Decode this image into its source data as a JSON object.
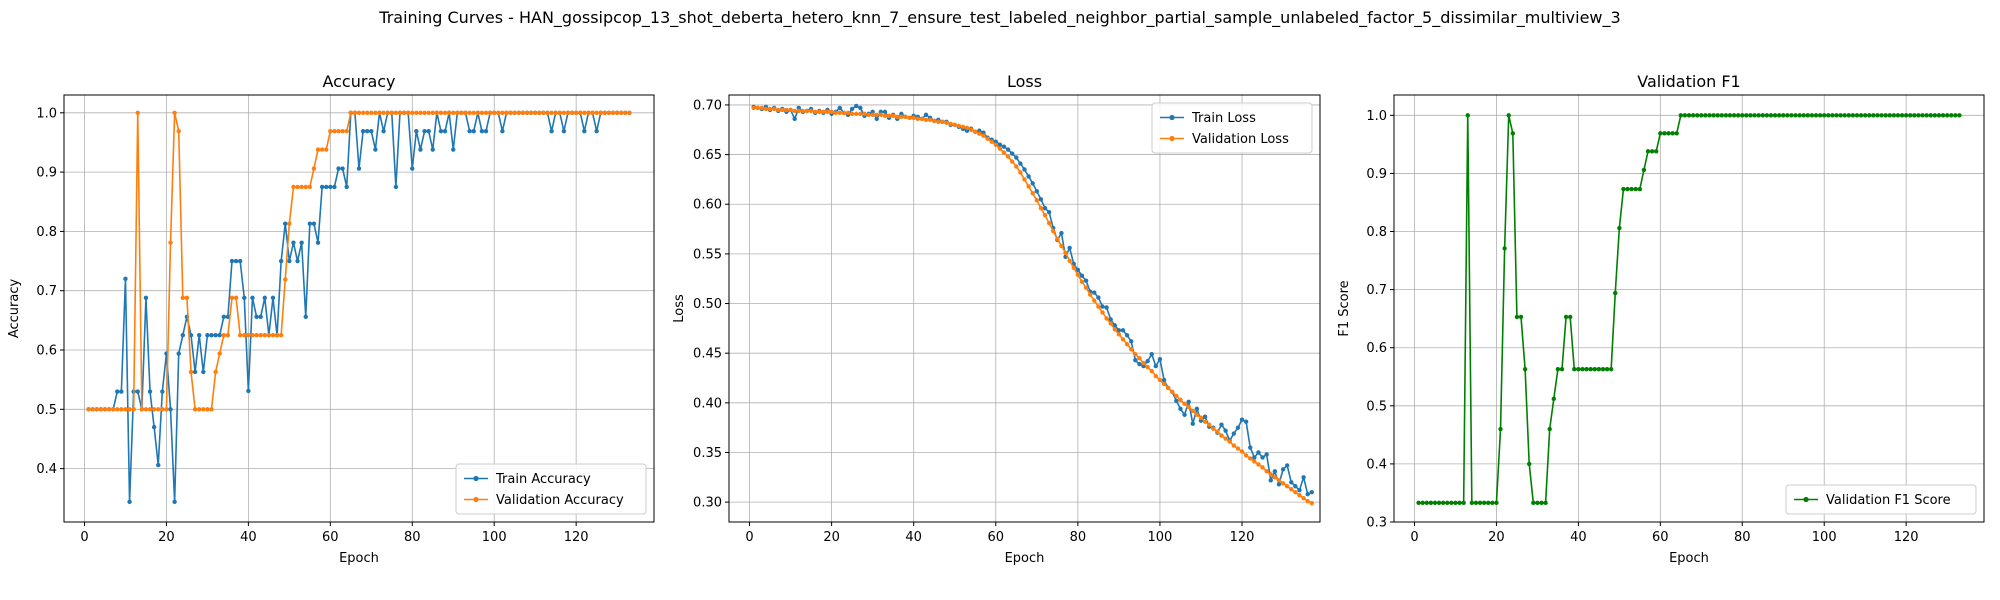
{
  "figure": {
    "suptitle": "Training Curves - HAN_gossipcop_13_shot_deberta_hetero_knn_7_ensure_test_labeled_neighbor_partial_sample_unlabeled_factor_5_dissimilar_multiview_3"
  },
  "colors": {
    "train": "#1f77b4",
    "validation": "#ff7f0e",
    "f1": "#008000",
    "grid": "#b0b0b0"
  },
  "chart_data": [
    {
      "type": "line",
      "title": "Accuracy",
      "xlabel": "Epoch",
      "ylabel": "Accuracy",
      "xlim": [
        -5,
        139
      ],
      "ylim": [
        0.31,
        1.03
      ],
      "xticks": [
        0,
        20,
        40,
        60,
        80,
        100,
        120
      ],
      "yticks": [
        0.4,
        0.5,
        0.6,
        0.7,
        0.8,
        0.9,
        1.0
      ],
      "ytick_labels": [
        "0.4",
        "0.5",
        "0.6",
        "0.7",
        "0.8",
        "0.9",
        "1.0"
      ],
      "grid": true,
      "legend": "lower-right",
      "series": [
        {
          "name": "Train Accuracy",
          "color": "#1f77b4",
          "values": [
            0.5,
            0.5,
            0.5,
            0.5,
            0.5,
            0.5,
            0.5,
            0.53,
            0.53,
            0.72,
            0.344,
            0.53,
            0.53,
            0.5,
            0.688,
            0.53,
            0.47,
            0.406,
            0.53,
            0.594,
            0.5,
            0.344,
            0.594,
            0.625,
            0.656,
            0.625,
            0.563,
            0.625,
            0.563,
            0.625,
            0.625,
            0.625,
            0.625,
            0.656,
            0.656,
            0.75,
            0.75,
            0.75,
            0.688,
            0.531,
            0.688,
            0.656,
            0.656,
            0.688,
            0.625,
            0.688,
            0.625,
            0.75,
            0.813,
            0.75,
            0.781,
            0.75,
            0.781,
            0.656,
            0.813,
            0.813,
            0.781,
            0.875,
            0.875,
            0.875,
            0.875,
            0.906,
            0.906,
            0.875,
            1.0,
            1.0,
            0.906,
            0.969,
            0.969,
            0.969,
            0.938,
            1.0,
            0.969,
            1.0,
            1.0,
            0.875,
            1.0,
            1.0,
            1.0,
            0.906,
            0.969,
            0.938,
            0.969,
            0.969,
            0.938,
            1.0,
            0.969,
            0.969,
            1.0,
            0.938,
            1.0,
            1.0,
            1.0,
            0.969,
            0.969,
            1.0,
            0.969,
            0.969,
            1.0,
            1.0,
            1.0,
            0.969,
            1.0,
            1.0,
            1.0,
            1.0,
            1.0,
            1.0,
            1.0,
            1.0,
            1.0,
            1.0,
            1.0,
            0.969,
            1.0,
            1.0,
            0.969,
            1.0,
            1.0,
            1.0,
            1.0,
            0.969,
            1.0,
            1.0,
            0.969,
            1.0,
            1.0,
            1.0,
            1.0,
            1.0,
            1.0,
            1.0,
            1.0
          ]
        },
        {
          "name": "Validation Accuracy",
          "color": "#ff7f0e",
          "values": [
            0.5,
            0.5,
            0.5,
            0.5,
            0.5,
            0.5,
            0.5,
            0.5,
            0.5,
            0.5,
            0.5,
            0.5,
            1.0,
            0.5,
            0.5,
            0.5,
            0.5,
            0.5,
            0.5,
            0.5,
            0.781,
            1.0,
            0.969,
            0.688,
            0.688,
            0.563,
            0.5,
            0.5,
            0.5,
            0.5,
            0.5,
            0.563,
            0.594,
            0.625,
            0.625,
            0.688,
            0.688,
            0.625,
            0.625,
            0.625,
            0.625,
            0.625,
            0.625,
            0.625,
            0.625,
            0.625,
            0.625,
            0.625,
            0.719,
            0.813,
            0.875,
            0.875,
            0.875,
            0.875,
            0.875,
            0.906,
            0.938,
            0.938,
            0.938,
            0.969,
            0.969,
            0.969,
            0.969,
            0.969,
            1.0,
            1.0,
            1.0,
            1.0,
            1.0,
            1.0,
            1.0,
            1.0,
            1.0,
            1.0,
            1.0,
            1.0,
            1.0,
            1.0,
            1.0,
            1.0,
            1.0,
            1.0,
            1.0,
            1.0,
            1.0,
            1.0,
            1.0,
            1.0,
            1.0,
            1.0,
            1.0,
            1.0,
            1.0,
            1.0,
            1.0,
            1.0,
            1.0,
            1.0,
            1.0,
            1.0,
            1.0,
            1.0,
            1.0,
            1.0,
            1.0,
            1.0,
            1.0,
            1.0,
            1.0,
            1.0,
            1.0,
            1.0,
            1.0,
            1.0,
            1.0,
            1.0,
            1.0,
            1.0,
            1.0,
            1.0,
            1.0,
            1.0,
            1.0,
            1.0,
            1.0,
            1.0,
            1.0,
            1.0,
            1.0,
            1.0,
            1.0,
            1.0,
            1.0
          ]
        }
      ]
    },
    {
      "type": "line",
      "title": "Loss",
      "xlabel": "Epoch",
      "ylabel": "Loss",
      "xlim": [
        -5,
        139
      ],
      "ylim": [
        0.28,
        0.71
      ],
      "xticks": [
        0,
        20,
        40,
        60,
        80,
        100,
        120
      ],
      "yticks": [
        0.3,
        0.35,
        0.4,
        0.45,
        0.5,
        0.55,
        0.6,
        0.65,
        0.7
      ],
      "ytick_labels": [
        "0.30",
        "0.35",
        "0.40",
        "0.45",
        "0.50",
        "0.55",
        "0.60",
        "0.65",
        "0.70"
      ],
      "grid": true,
      "legend": "upper-right",
      "series": [
        {
          "name": "Train Loss",
          "color": "#1f77b4",
          "values": [
            0.698,
            0.697,
            0.696,
            0.698,
            0.695,
            0.697,
            0.694,
            0.696,
            0.693,
            0.695,
            0.686,
            0.697,
            0.693,
            0.694,
            0.696,
            0.692,
            0.694,
            0.692,
            0.695,
            0.691,
            0.693,
            0.697,
            0.692,
            0.69,
            0.696,
            0.699,
            0.697,
            0.689,
            0.691,
            0.693,
            0.686,
            0.693,
            0.693,
            0.687,
            0.69,
            0.686,
            0.691,
            0.688,
            0.687,
            0.689,
            0.688,
            0.686,
            0.69,
            0.687,
            0.684,
            0.685,
            0.683,
            0.683,
            0.68,
            0.68,
            0.678,
            0.676,
            0.674,
            0.676,
            0.673,
            0.674,
            0.672,
            0.667,
            0.665,
            0.663,
            0.66,
            0.658,
            0.655,
            0.651,
            0.647,
            0.641,
            0.635,
            0.628,
            0.621,
            0.613,
            0.605,
            0.596,
            0.592,
            0.576,
            0.564,
            0.571,
            0.547,
            0.556,
            0.54,
            0.534,
            0.528,
            0.523,
            0.512,
            0.511,
            0.506,
            0.497,
            0.496,
            0.484,
            0.478,
            0.473,
            0.473,
            0.468,
            0.462,
            0.443,
            0.439,
            0.437,
            0.442,
            0.449,
            0.437,
            0.444,
            0.423,
            0.415,
            0.411,
            0.402,
            0.394,
            0.388,
            0.401,
            0.379,
            0.394,
            0.382,
            0.386,
            0.376,
            0.375,
            0.37,
            0.378,
            0.372,
            0.362,
            0.369,
            0.375,
            0.383,
            0.381,
            0.355,
            0.345,
            0.35,
            0.345,
            0.348,
            0.322,
            0.331,
            0.318,
            0.333,
            0.337,
            0.32,
            0.316,
            0.312,
            0.325,
            0.308,
            0.31
          ]
        },
        {
          "name": "Validation Loss",
          "color": "#ff7f0e",
          "values": [
            0.697,
            0.697,
            0.697,
            0.696,
            0.696,
            0.696,
            0.695,
            0.695,
            0.695,
            0.695,
            0.694,
            0.694,
            0.694,
            0.694,
            0.694,
            0.693,
            0.693,
            0.693,
            0.693,
            0.693,
            0.692,
            0.692,
            0.692,
            0.692,
            0.691,
            0.691,
            0.691,
            0.691,
            0.69,
            0.69,
            0.69,
            0.69,
            0.689,
            0.689,
            0.689,
            0.688,
            0.688,
            0.688,
            0.687,
            0.687,
            0.686,
            0.686,
            0.685,
            0.685,
            0.684,
            0.683,
            0.683,
            0.682,
            0.681,
            0.68,
            0.679,
            0.678,
            0.677,
            0.675,
            0.673,
            0.671,
            0.669,
            0.666,
            0.663,
            0.66,
            0.656,
            0.652,
            0.648,
            0.643,
            0.638,
            0.632,
            0.625,
            0.618,
            0.611,
            0.604,
            0.596,
            0.589,
            0.581,
            0.573,
            0.565,
            0.558,
            0.551,
            0.543,
            0.536,
            0.529,
            0.522,
            0.516,
            0.509,
            0.503,
            0.497,
            0.491,
            0.485,
            0.48,
            0.474,
            0.469,
            0.464,
            0.459,
            0.454,
            0.449,
            0.445,
            0.44,
            0.436,
            0.432,
            0.427,
            0.423,
            0.419,
            0.415,
            0.411,
            0.407,
            0.403,
            0.399,
            0.396,
            0.392,
            0.388,
            0.385,
            0.381,
            0.378,
            0.374,
            0.371,
            0.367,
            0.364,
            0.361,
            0.357,
            0.354,
            0.351,
            0.347,
            0.344,
            0.341,
            0.338,
            0.335,
            0.331,
            0.328,
            0.325,
            0.322,
            0.319,
            0.316,
            0.313,
            0.31,
            0.307,
            0.304,
            0.301,
            0.299
          ]
        }
      ]
    },
    {
      "type": "line",
      "title": "Validation F1",
      "xlabel": "Epoch",
      "ylabel": "F1 Score",
      "xlim": [
        -5,
        139
      ],
      "ylim": [
        0.3,
        1.035
      ],
      "xticks": [
        0,
        20,
        40,
        60,
        80,
        100,
        120
      ],
      "yticks": [
        0.3,
        0.4,
        0.5,
        0.6,
        0.7,
        0.8,
        0.9,
        1.0
      ],
      "ytick_labels": [
        "0.3",
        "0.4",
        "0.5",
        "0.6",
        "0.7",
        "0.8",
        "0.9",
        "1.0"
      ],
      "grid": true,
      "legend": "lower-right",
      "series": [
        {
          "name": "Validation F1 Score",
          "color": "#008000",
          "values": [
            0.333,
            0.333,
            0.333,
            0.333,
            0.333,
            0.333,
            0.333,
            0.333,
            0.333,
            0.333,
            0.333,
            0.333,
            1.0,
            0.333,
            0.333,
            0.333,
            0.333,
            0.333,
            0.333,
            0.333,
            0.46,
            0.771,
            1.0,
            0.969,
            0.653,
            0.653,
            0.563,
            0.4,
            0.333,
            0.333,
            0.333,
            0.333,
            0.46,
            0.512,
            0.563,
            0.563,
            0.653,
            0.653,
            0.563,
            0.563,
            0.563,
            0.563,
            0.563,
            0.563,
            0.563,
            0.563,
            0.563,
            0.563,
            0.694,
            0.806,
            0.873,
            0.873,
            0.873,
            0.873,
            0.873,
            0.906,
            0.938,
            0.938,
            0.938,
            0.969,
            0.969,
            0.969,
            0.969,
            0.969,
            1.0,
            1.0,
            1.0,
            1.0,
            1.0,
            1.0,
            1.0,
            1.0,
            1.0,
            1.0,
            1.0,
            1.0,
            1.0,
            1.0,
            1.0,
            1.0,
            1.0,
            1.0,
            1.0,
            1.0,
            1.0,
            1.0,
            1.0,
            1.0,
            1.0,
            1.0,
            1.0,
            1.0,
            1.0,
            1.0,
            1.0,
            1.0,
            1.0,
            1.0,
            1.0,
            1.0,
            1.0,
            1.0,
            1.0,
            1.0,
            1.0,
            1.0,
            1.0,
            1.0,
            1.0,
            1.0,
            1.0,
            1.0,
            1.0,
            1.0,
            1.0,
            1.0,
            1.0,
            1.0,
            1.0,
            1.0,
            1.0,
            1.0,
            1.0,
            1.0,
            1.0,
            1.0,
            1.0,
            1.0,
            1.0,
            1.0,
            1.0,
            1.0,
            1.0
          ]
        }
      ]
    }
  ]
}
